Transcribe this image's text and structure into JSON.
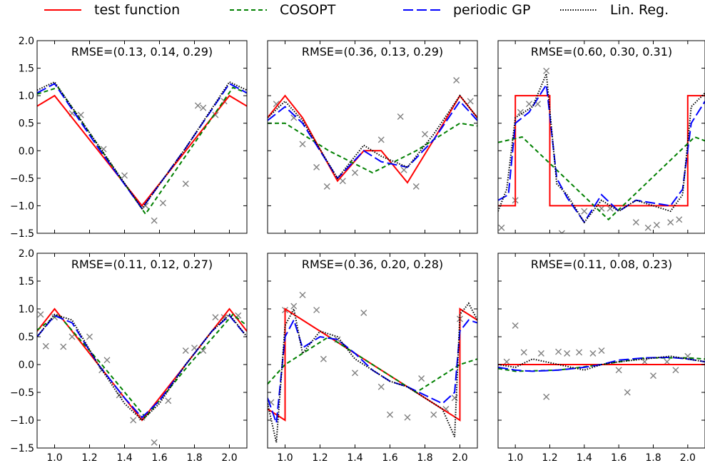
{
  "legend": [
    {
      "name": "test function",
      "color": "#ff0000",
      "dash": "solid"
    },
    {
      "name": "COSOPT",
      "color": "#008000",
      "dash": "dashed"
    },
    {
      "name": "periodic GP",
      "color": "#0000ff",
      "dash": "longdash"
    },
    {
      "name": "Lin. Reg.",
      "color": "#000000",
      "dash": "dotted"
    }
  ],
  "chart_data": [
    {
      "type": "line",
      "title": "RMSE=(0.13, 0.14, 0.29)",
      "xlim": [
        0.9,
        2.1
      ],
      "ylim": [
        -1.5,
        2.0
      ],
      "xticks": [
        "1.0",
        "1.2",
        "1.4",
        "1.6",
        "1.8",
        "2.0"
      ],
      "yticks": [
        "2.0",
        "1.5",
        "1.0",
        "0.5",
        "0.0",
        "−0.5",
        "−1.0",
        "−1.5"
      ],
      "test_function": {
        "x": [
          0.9,
          1.0,
          1.25,
          1.5,
          1.75,
          2.0,
          2.1
        ],
        "y": [
          0.81,
          1.0,
          0.0,
          -1.0,
          0.0,
          1.0,
          0.81
        ]
      },
      "cosopt": {
        "x": [
          0.9,
          1.02,
          1.27,
          1.52,
          1.77,
          2.02,
          2.1
        ],
        "y": [
          1.03,
          1.15,
          0.0,
          -1.15,
          0.0,
          1.15,
          1.05
        ]
      },
      "periodic_gp": {
        "x": [
          0.9,
          1.0,
          1.25,
          1.5,
          1.75,
          2.0,
          2.1
        ],
        "y": [
          1.05,
          1.22,
          0.05,
          -1.05,
          0.05,
          1.22,
          1.05
        ]
      },
      "lin_reg": {
        "x": [
          0.9,
          1.0,
          1.25,
          1.5,
          1.75,
          2.0,
          2.1
        ],
        "y": [
          1.1,
          1.25,
          0.1,
          -1.05,
          0.05,
          1.25,
          1.1
        ]
      },
      "observations": {
        "x": [
          1.1,
          1.15,
          1.28,
          1.4,
          1.52,
          1.57,
          1.62,
          1.75,
          1.82,
          1.85,
          1.92,
          1.97
        ],
        "y": [
          0.68,
          0.65,
          0.03,
          -0.45,
          -1.0,
          -1.27,
          -0.95,
          -0.6,
          0.82,
          0.78,
          0.65,
          0.9
        ]
      }
    },
    {
      "type": "line",
      "title": "RMSE=(0.36, 0.13, 0.29)",
      "xlim": [
        0.9,
        2.1
      ],
      "ylim": [
        -1.5,
        2.0
      ],
      "xticks": [
        "1.0",
        "1.2",
        "1.4",
        "1.6",
        "1.8",
        "2.0"
      ],
      "yticks": [
        "2.0",
        "1.5",
        "1.0",
        "0.5",
        "0.0",
        "−0.5",
        "−1.0",
        "−1.5"
      ],
      "test_function": {
        "x": [
          0.9,
          1.0,
          1.1,
          1.3,
          1.45,
          1.55,
          1.7,
          1.85,
          2.0,
          2.1
        ],
        "y": [
          0.6,
          1.0,
          0.6,
          -0.55,
          0.0,
          0.0,
          -0.58,
          0.2,
          1.0,
          0.6
        ]
      },
      "cosopt": {
        "x": [
          0.9,
          1.0,
          1.25,
          1.5,
          1.75,
          2.0,
          2.1
        ],
        "y": [
          0.5,
          0.5,
          0.0,
          -0.4,
          0.0,
          0.5,
          0.45
        ]
      },
      "periodic_gp": {
        "x": [
          0.9,
          1.0,
          1.1,
          1.3,
          1.45,
          1.55,
          1.7,
          1.85,
          2.0,
          2.1
        ],
        "y": [
          0.55,
          0.8,
          0.5,
          -0.5,
          0.0,
          -0.2,
          -0.3,
          0.2,
          0.9,
          0.55
        ]
      },
      "lin_reg": {
        "x": [
          0.9,
          1.0,
          1.1,
          1.3,
          1.45,
          1.55,
          1.7,
          1.85,
          2.0,
          2.1
        ],
        "y": [
          0.6,
          0.9,
          0.55,
          -0.5,
          0.1,
          -0.1,
          -0.3,
          0.3,
          1.0,
          0.6
        ]
      },
      "observations": {
        "x": [
          0.95,
          1.05,
          1.1,
          1.18,
          1.24,
          1.33,
          1.4,
          1.55,
          1.66,
          1.68,
          1.75,
          1.8,
          1.98,
          2.06
        ],
        "y": [
          0.85,
          0.6,
          0.12,
          -0.3,
          -0.65,
          -0.55,
          -0.4,
          0.2,
          0.62,
          -0.35,
          -0.65,
          0.3,
          1.28,
          0.9
        ]
      }
    },
    {
      "type": "line",
      "title": "RMSE=(0.60, 0.30, 0.31)",
      "xlim": [
        0.9,
        2.1
      ],
      "ylim": [
        -1.5,
        2.0
      ],
      "xticks": [
        "1.0",
        "1.2",
        "1.4",
        "1.6",
        "1.8",
        "2.0"
      ],
      "yticks": [
        "2.0",
        "1.5",
        "1.0",
        "0.5",
        "0.0",
        "−0.5",
        "−1.0",
        "−1.5"
      ],
      "test_function": {
        "x": [
          0.9,
          1.0,
          1.0,
          1.2,
          1.2,
          2.0,
          2.0,
          2.1
        ],
        "y": [
          -1.0,
          -1.0,
          1.0,
          1.0,
          -1.0,
          -1.0,
          1.0,
          1.0
        ]
      },
      "cosopt": {
        "x": [
          0.9,
          1.04,
          1.29,
          1.54,
          1.79,
          2.04,
          2.1
        ],
        "y": [
          0.15,
          0.25,
          -0.5,
          -1.25,
          -0.5,
          0.25,
          0.18
        ]
      },
      "periodic_gp": {
        "x": [
          0.9,
          0.96,
          1.0,
          1.08,
          1.18,
          1.24,
          1.3,
          1.4,
          1.5,
          1.6,
          1.7,
          1.8,
          1.9,
          1.97,
          2.02,
          2.1
        ],
        "y": [
          -0.9,
          -0.8,
          0.5,
          0.7,
          1.2,
          -0.5,
          -0.85,
          -1.3,
          -0.8,
          -1.1,
          -0.9,
          -0.95,
          -1.0,
          -0.7,
          0.5,
          0.9
        ]
      },
      "lin_reg": {
        "x": [
          0.9,
          0.95,
          1.0,
          1.1,
          1.18,
          1.24,
          1.3,
          1.4,
          1.5,
          1.6,
          1.7,
          1.8,
          1.9,
          1.97,
          2.02,
          2.1
        ],
        "y": [
          -1.1,
          -0.7,
          0.6,
          0.8,
          1.4,
          -0.6,
          -0.8,
          -1.3,
          -0.9,
          -1.1,
          -0.9,
          -1.0,
          -1.1,
          -0.8,
          0.8,
          1.05
        ]
      },
      "observations": {
        "x": [
          0.92,
          1.0,
          1.03,
          1.08,
          1.13,
          1.18,
          1.27,
          1.4,
          1.5,
          1.55,
          1.7,
          1.77,
          1.82,
          1.9,
          1.95
        ],
        "y": [
          -1.4,
          -0.9,
          0.7,
          0.85,
          0.85,
          1.45,
          -1.5,
          -1.1,
          -1.05,
          -1.05,
          -1.3,
          -1.4,
          -1.35,
          -1.3,
          -1.25
        ]
      }
    },
    {
      "type": "line",
      "title": "RMSE=(0.11, 0.12, 0.27)",
      "xlim": [
        0.9,
        2.1
      ],
      "ylim": [
        -1.5,
        2.0
      ],
      "xticks": [
        "1.0",
        "1.2",
        "1.4",
        "1.6",
        "1.8",
        "2.0"
      ],
      "yticks": [
        "2.0",
        "1.5",
        "1.0",
        "0.5",
        "0.0",
        "−0.5",
        "−1.0",
        "−1.5"
      ],
      "test_function": {
        "x": [
          0.9,
          1.0,
          1.5,
          2.0,
          2.1
        ],
        "y": [
          0.6,
          1.0,
          -1.0,
          1.0,
          0.6
        ]
      },
      "cosopt": {
        "x": [
          0.9,
          1.02,
          1.27,
          1.52,
          1.77,
          2.02,
          2.1
        ],
        "y": [
          0.62,
          0.9,
          0.0,
          -0.95,
          0.0,
          0.9,
          0.7
        ]
      },
      "periodic_gp": {
        "x": [
          0.9,
          1.0,
          1.1,
          1.25,
          1.4,
          1.5,
          1.6,
          1.75,
          1.9,
          2.0,
          2.1
        ],
        "y": [
          0.5,
          0.88,
          0.75,
          0.0,
          -0.6,
          -0.95,
          -0.65,
          0.0,
          0.6,
          0.88,
          0.5
        ]
      },
      "lin_reg": {
        "x": [
          0.9,
          1.0,
          1.1,
          1.25,
          1.4,
          1.5,
          1.6,
          1.75,
          1.9,
          2.0,
          2.1
        ],
        "y": [
          0.5,
          0.9,
          0.8,
          0.0,
          -0.7,
          -1.0,
          -0.7,
          0.0,
          0.6,
          0.9,
          0.5
        ]
      },
      "observations": {
        "x": [
          0.92,
          0.95,
          1.0,
          1.05,
          1.1,
          1.2,
          1.27,
          1.3,
          1.37,
          1.45,
          1.5,
          1.57,
          1.65,
          1.75,
          1.8,
          1.85,
          1.92,
          1.97,
          2.05
        ],
        "y": [
          0.9,
          0.33,
          0.85,
          0.32,
          0.5,
          0.5,
          -0.1,
          0.08,
          -0.55,
          -1.0,
          -0.95,
          -1.4,
          -0.65,
          0.25,
          0.3,
          0.25,
          0.85,
          0.85,
          0.88
        ]
      }
    },
    {
      "type": "line",
      "title": "RMSE=(0.36, 0.20, 0.28)",
      "xlim": [
        0.9,
        2.1
      ],
      "ylim": [
        -1.5,
        2.0
      ],
      "xticks": [
        "1.0",
        "1.2",
        "1.4",
        "1.6",
        "1.8",
        "2.0"
      ],
      "yticks": [
        "2.0",
        "1.5",
        "1.0",
        "0.5",
        "0.0",
        "−0.5",
        "−1.0",
        "−1.5"
      ],
      "test_function": {
        "x": [
          0.9,
          1.0,
          1.0,
          2.0,
          2.0,
          2.1
        ],
        "y": [
          -0.8,
          -1.0,
          1.0,
          -1.0,
          1.0,
          0.8
        ]
      },
      "cosopt": {
        "x": [
          0.9,
          1.0,
          1.25,
          1.5,
          1.75,
          2.0,
          2.1
        ],
        "y": [
          -0.35,
          0.0,
          0.5,
          0.0,
          -0.5,
          0.0,
          0.1
        ]
      },
      "periodic_gp": {
        "x": [
          0.9,
          0.95,
          1.0,
          1.05,
          1.1,
          1.2,
          1.3,
          1.4,
          1.5,
          1.6,
          1.7,
          1.8,
          1.9,
          1.97,
          2.0,
          2.05,
          2.1
        ],
        "y": [
          -0.6,
          -1.05,
          0.5,
          0.8,
          0.3,
          0.5,
          0.45,
          0.2,
          -0.1,
          -0.3,
          -0.4,
          -0.55,
          -0.7,
          -0.5,
          0.6,
          0.8,
          0.75
        ]
      },
      "lin_reg": {
        "x": [
          0.9,
          0.95,
          1.0,
          1.05,
          1.1,
          1.2,
          1.3,
          1.4,
          1.5,
          1.6,
          1.7,
          1.8,
          1.9,
          1.97,
          2.0,
          2.05,
          2.1
        ],
        "y": [
          -0.7,
          -1.4,
          0.7,
          1.0,
          0.2,
          0.6,
          0.5,
          0.1,
          -0.1,
          -0.3,
          -0.4,
          -0.6,
          -0.8,
          -1.3,
          0.9,
          1.1,
          0.8
        ]
      },
      "observations": {
        "x": [
          0.92,
          1.0,
          1.05,
          1.1,
          1.18,
          1.22,
          1.3,
          1.4,
          1.45,
          1.55,
          1.6,
          1.7,
          1.78,
          1.85,
          1.92,
          1.97,
          2.0
        ],
        "y": [
          -0.68,
          0.98,
          1.05,
          1.25,
          0.98,
          0.1,
          0.45,
          -0.15,
          0.93,
          -0.4,
          -0.9,
          -0.95,
          -0.25,
          -0.9,
          -0.8,
          -0.6,
          0.82
        ]
      }
    },
    {
      "type": "line",
      "title": "RMSE=(0.11, 0.08, 0.23)",
      "xlim": [
        0.9,
        2.1
      ],
      "ylim": [
        -1.5,
        2.0
      ],
      "xticks": [
        "1.0",
        "1.2",
        "1.4",
        "1.6",
        "1.8",
        "2.0"
      ],
      "yticks": [
        "2.0",
        "1.5",
        "1.0",
        "0.5",
        "0.0",
        "−0.5",
        "−1.0",
        "−1.5"
      ],
      "test_function": {
        "x": [
          0.9,
          2.1
        ],
        "y": [
          0.0,
          0.0
        ]
      },
      "cosopt": {
        "x": [
          0.9,
          1.0,
          1.25,
          1.5,
          1.75,
          2.0,
          2.1
        ],
        "y": [
          -0.07,
          -0.12,
          -0.1,
          0.0,
          0.12,
          0.12,
          0.1
        ]
      },
      "periodic_gp": {
        "x": [
          0.9,
          1.0,
          1.1,
          1.25,
          1.4,
          1.5,
          1.6,
          1.75,
          1.9,
          2.0,
          2.1
        ],
        "y": [
          -0.05,
          -0.1,
          -0.12,
          -0.1,
          -0.05,
          0.0,
          0.08,
          0.12,
          0.13,
          0.1,
          0.05
        ]
      },
      "lin_reg": {
        "x": [
          0.9,
          1.0,
          1.1,
          1.25,
          1.4,
          1.5,
          1.6,
          1.75,
          1.9,
          2.0,
          2.1
        ],
        "y": [
          0.0,
          -0.05,
          0.1,
          0.0,
          -0.1,
          0.0,
          0.05,
          0.1,
          0.15,
          0.1,
          0.05
        ]
      },
      "observations": {
        "x": [
          0.95,
          1.0,
          1.05,
          1.15,
          1.18,
          1.25,
          1.3,
          1.37,
          1.45,
          1.5,
          1.6,
          1.65,
          1.75,
          1.8,
          1.88,
          1.93,
          2.0
        ],
        "y": [
          0.05,
          0.7,
          0.22,
          0.2,
          -0.58,
          0.23,
          0.2,
          0.22,
          0.2,
          0.25,
          -0.1,
          -0.5,
          0.05,
          -0.2,
          0.05,
          -0.1,
          0.15
        ]
      }
    }
  ]
}
